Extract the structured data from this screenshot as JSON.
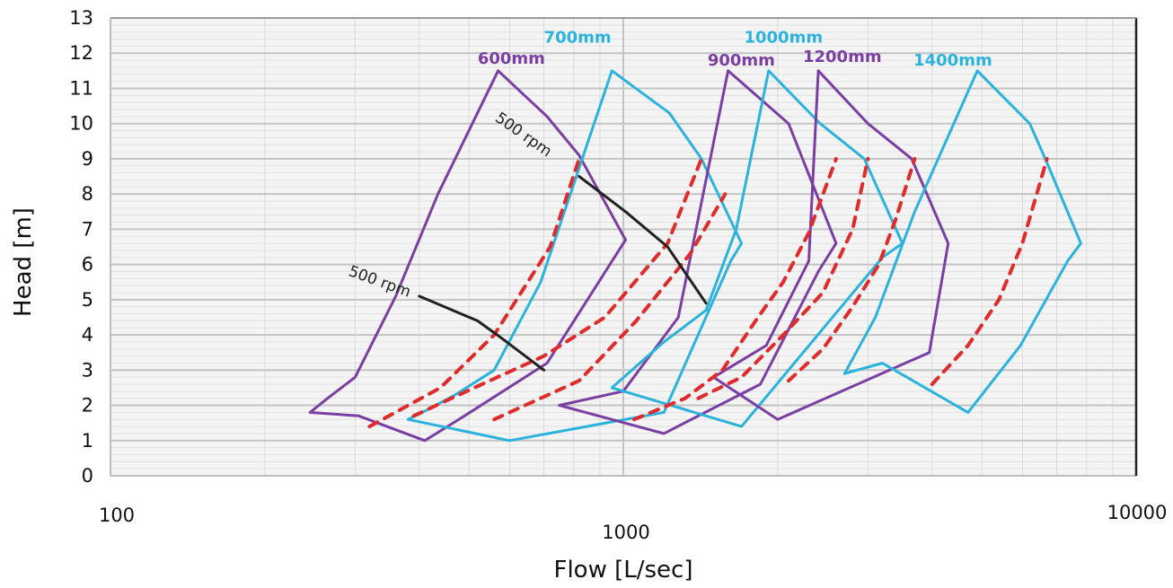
{
  "chart_data": {
    "type": "line",
    "title": "",
    "xlabel": "Flow [L/sec]",
    "ylabel": "Head [m]",
    "xscale": "log",
    "xlim": [
      100,
      10000
    ],
    "ylim": [
      0,
      13
    ],
    "grid": true,
    "x_tick_labels": [
      "100",
      "1000",
      "10000"
    ],
    "y_tick_labels": [
      "0",
      "1",
      "2",
      "3",
      "4",
      "5",
      "6",
      "7",
      "8",
      "9",
      "10",
      "11",
      "12",
      "13"
    ],
    "colors": {
      "purple": "#7b3fa3",
      "cyan": "#2bb3dd",
      "red": "#e02b2b",
      "black": "#222222",
      "grid": "#c8c8c8"
    },
    "series": [
      {
        "name": "600mm",
        "color": "purple",
        "style": "solid",
        "x": [
          570,
          710,
          820,
          1010,
          710,
          490,
          410,
          305,
          245,
          265,
          300,
          360,
          435,
          570
        ],
        "y": [
          11.5,
          10.2,
          9.1,
          6.7,
          3.2,
          1.7,
          1.0,
          1.7,
          1.8,
          2.2,
          2.8,
          5.1,
          8.0,
          11.5
        ]
      },
      {
        "name": "700mm",
        "color": "cyan",
        "style": "solid",
        "x": [
          950,
          1230,
          1420,
          1700,
          1620,
          1200,
          600,
          380,
          400,
          470,
          560,
          690,
          950
        ],
        "y": [
          11.5,
          10.3,
          9.0,
          6.6,
          6.1,
          1.8,
          1.0,
          1.6,
          1.75,
          2.3,
          3.0,
          5.5,
          11.5
        ]
      },
      {
        "name": "900mm",
        "color": "purple",
        "style": "solid",
        "x": [
          1600,
          2100,
          2600,
          2400,
          1850,
          1200,
          750,
          1000,
          1280,
          1600
        ],
        "y": [
          11.5,
          10.0,
          6.6,
          5.8,
          2.6,
          1.2,
          2.0,
          2.4,
          4.5,
          11.5
        ]
      },
      {
        "name": "1000mm",
        "color": "cyan",
        "style": "solid",
        "x": [
          1920,
          2420,
          2950,
          3500,
          3200,
          1700,
          950,
          1200,
          1450,
          1660,
          1920
        ],
        "y": [
          11.5,
          10.0,
          9.0,
          6.6,
          6.2,
          1.4,
          2.5,
          3.8,
          4.7,
          7.0,
          11.5
        ]
      },
      {
        "name": "1200mm",
        "color": "purple",
        "style": "solid",
        "x": [
          2400,
          3000,
          3650,
          4300,
          3950,
          2000,
          1500,
          1900,
          2300,
          2400
        ],
        "y": [
          11.5,
          10.0,
          9.0,
          6.6,
          3.5,
          1.6,
          2.8,
          3.7,
          6.1,
          11.5
        ]
      },
      {
        "name": "1400mm",
        "color": "cyan",
        "style": "solid",
        "x": [
          4900,
          6200,
          6650,
          7800,
          7350,
          5950,
          4700,
          3200,
          2700,
          3100,
          3700,
          4900
        ],
        "y": [
          11.5,
          10.0,
          9.0,
          6.6,
          6.1,
          3.7,
          1.8,
          3.2,
          2.9,
          4.5,
          7.5,
          11.5
        ]
      },
      {
        "name": "",
        "color": "red",
        "style": "dashed",
        "x": [
          320,
          440,
          560,
          720,
          820
        ],
        "y": [
          1.4,
          2.5,
          4.0,
          6.5,
          9.0
        ]
      },
      {
        "name": "",
        "color": "red",
        "style": "dashed",
        "x": [
          390,
          530,
          700,
          920,
          1220,
          1420
        ],
        "y": [
          1.7,
          2.6,
          3.4,
          4.5,
          6.6,
          9.0
        ]
      },
      {
        "name": "",
        "color": "red",
        "style": "dashed",
        "x": [
          560,
          820,
          1060,
          1350,
          1580
        ],
        "y": [
          1.6,
          2.7,
          4.4,
          6.3,
          8.0
        ]
      },
      {
        "name": "",
        "color": "red",
        "style": "dashed",
        "x": [
          1050,
          1320,
          1560,
          1830,
          2050,
          2300,
          2600
        ],
        "y": [
          1.6,
          2.2,
          3.0,
          4.5,
          5.5,
          6.9,
          9.0
        ]
      },
      {
        "name": "",
        "color": "red",
        "style": "dashed",
        "x": [
          1400,
          1700,
          2050,
          2450,
          2800,
          3000
        ],
        "y": [
          2.2,
          2.8,
          4.0,
          5.2,
          7.0,
          9.0
        ]
      },
      {
        "name": "",
        "color": "red",
        "style": "dashed",
        "x": [
          2100,
          2450,
          2800,
          3150,
          3400,
          3700
        ],
        "y": [
          2.7,
          3.6,
          4.8,
          6.0,
          7.3,
          9.0
        ]
      },
      {
        "name": "",
        "color": "red",
        "style": "dashed",
        "x": [
          4000,
          4700,
          5400,
          6000,
          6700
        ],
        "y": [
          2.6,
          3.7,
          5.0,
          6.6,
          9.0
        ]
      },
      {
        "name": "",
        "color": "black",
        "style": "solid",
        "x": [
          400,
          520,
          580,
          700
        ],
        "y": [
          5.1,
          4.4,
          3.9,
          3.0
        ]
      },
      {
        "name": "",
        "color": "black",
        "style": "solid",
        "x": [
          820,
          1010,
          1220,
          1450
        ],
        "y": [
          8.5,
          7.5,
          6.5,
          4.9
        ]
      }
    ],
    "annotations": [
      {
        "text": "600mm",
        "x": 520,
        "y": 11.7,
        "color": "purple"
      },
      {
        "text": "700mm",
        "x": 700,
        "y": 12.3,
        "color": "cyan"
      },
      {
        "text": "1000mm",
        "x": 1720,
        "y": 12.3,
        "color": "cyan"
      },
      {
        "text": "900mm",
        "x": 1460,
        "y": 11.65,
        "color": "purple"
      },
      {
        "text": "1200mm",
        "x": 2240,
        "y": 11.75,
        "color": "purple"
      },
      {
        "text": "1400mm",
        "x": 3680,
        "y": 11.65,
        "color": "cyan"
      },
      {
        "text": "500 rpm",
        "x": 290,
        "y": 5.7,
        "color": "black",
        "rotate": 20
      },
      {
        "text": "500 rpm",
        "x": 560,
        "y": 10.1,
        "color": "black",
        "rotate": 35
      }
    ]
  }
}
